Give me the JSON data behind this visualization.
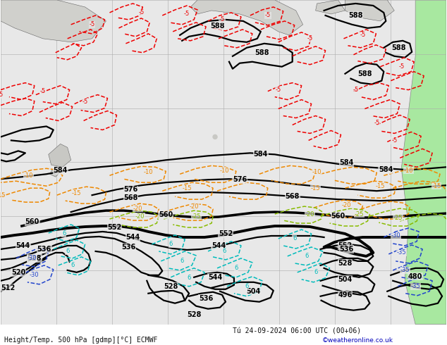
{
  "title_bottom": "Height/Temp. 500 hPa [gdmp][°C] ECMWF",
  "title_right": "Tú 24-09-2024 06:00 UTC (00+06)",
  "copyright": "©weatheronline.co.uk",
  "bg_color": "#ffffff",
  "map_bg": "#e8e8e8",
  "green_land_color": "#a8e8a0",
  "gray_land_color": "#c8c8c8",
  "grid_color": "#aaaaaa",
  "z500_color": "#000000",
  "temp_red_color": "#ee0000",
  "temp_orange_color": "#ee8800",
  "rain_cyan_color": "#00bbbb",
  "slp_green_color": "#88bb00",
  "blue_color": "#2244cc",
  "figsize": [
    6.34,
    4.9
  ],
  "dpi": 100
}
